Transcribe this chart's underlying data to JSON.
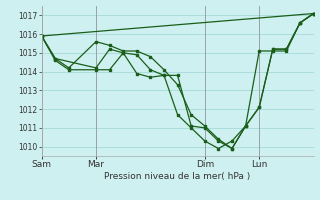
{
  "title": "",
  "xlabel": "Pression niveau de la mer( hPa )",
  "background_color": "#cff0f0",
  "grid_color": "#aadddd",
  "line_color": "#1a5e1a",
  "ylim": [
    1009.5,
    1017.5
  ],
  "yticks": [
    1010,
    1011,
    1012,
    1013,
    1014,
    1015,
    1016,
    1017
  ],
  "xlim": [
    0,
    120
  ],
  "day_labels": [
    "Sam",
    "Mar",
    "Dim",
    "Lun"
  ],
  "day_positions": [
    0,
    24,
    72,
    96
  ],
  "series": [
    {
      "x": [
        0,
        6,
        12,
        24,
        30,
        36,
        42,
        48,
        54,
        60,
        66,
        72,
        78,
        84,
        90,
        96,
        102,
        108,
        114,
        120
      ],
      "y": [
        1015.9,
        1014.7,
        1014.2,
        1015.6,
        1015.4,
        1015.1,
        1015.1,
        1014.8,
        1014.1,
        1013.3,
        1011.7,
        1011.1,
        1010.4,
        1009.9,
        1011.1,
        1012.1,
        1015.2,
        1015.2,
        1016.6,
        1017.1
      ]
    },
    {
      "x": [
        0,
        6,
        12,
        24,
        30,
        36,
        42,
        48,
        54,
        60,
        66,
        72,
        78,
        84,
        90,
        96,
        102,
        108,
        114,
        120
      ],
      "y": [
        1015.9,
        1014.6,
        1014.1,
        1014.1,
        1014.1,
        1015.0,
        1013.9,
        1013.7,
        1013.8,
        1011.7,
        1011.0,
        1010.3,
        1009.9,
        1010.3,
        1011.1,
        1012.1,
        1015.2,
        1015.2,
        1016.6,
        1017.1
      ]
    },
    {
      "x": [
        0,
        120
      ],
      "y": [
        1015.9,
        1017.1
      ]
    },
    {
      "x": [
        0,
        6,
        24,
        30,
        36,
        42,
        48,
        54,
        60,
        66,
        72,
        78,
        84,
        90,
        96,
        102,
        108,
        114,
        120
      ],
      "y": [
        1015.9,
        1014.7,
        1014.2,
        1015.2,
        1015.0,
        1014.9,
        1014.1,
        1013.8,
        1013.8,
        1011.1,
        1011.0,
        1010.3,
        1009.9,
        1011.1,
        1015.1,
        1015.1,
        1015.1,
        1016.6,
        1017.1
      ]
    }
  ]
}
